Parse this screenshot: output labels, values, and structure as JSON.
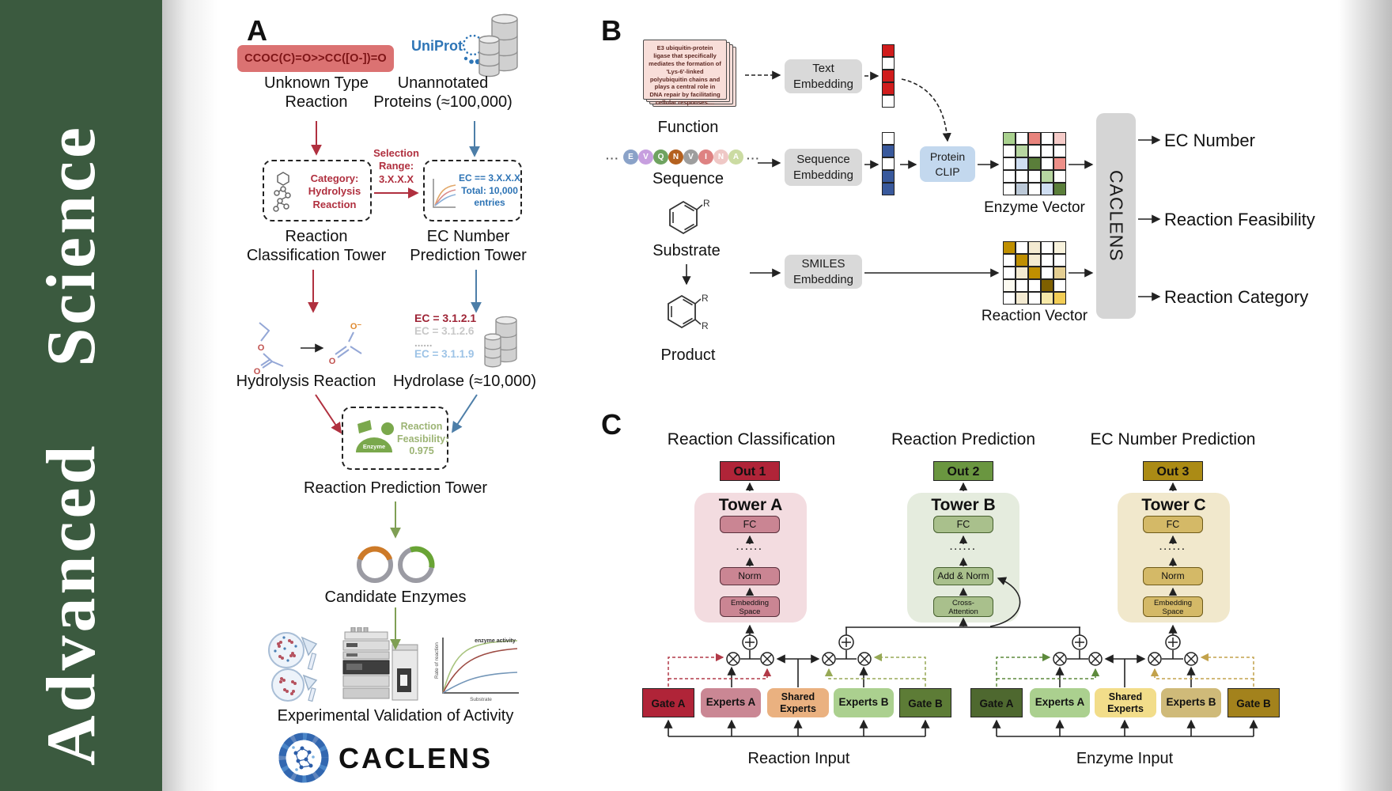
{
  "journal": {
    "name": "Advanced Science"
  },
  "panelA": {
    "label": "A",
    "smiles": "CCOC(C)=O>>CC([O-])=O",
    "unknown_reaction": "Unknown Type\nReaction",
    "uniprot": "UniProt",
    "unannotated": "Unannotated\nProteins (≈100,000)",
    "selection_range": "Selection\nRange:\n3.X.X.X",
    "category_box": "Category:\nHydrolysis\nReaction",
    "ec_box": "EC == 3.X.X.X\nTotal: 10,000\nentries",
    "classification_tower": "Reaction\nClassification Tower",
    "ec_tower": "EC Number\nPrediction Tower",
    "hydrolysis_label": "Hydrolysis Reaction",
    "ec_list": [
      "EC = 3.1.2.1",
      "EC = 3.1.2.6",
      "......",
      "EC = 3.1.1.9"
    ],
    "hydrolase_label": "Hydrolase (≈10,000)",
    "enzyme_label": "Enzyme",
    "feasibility": "Reaction\nFeasibility:\n0.975",
    "prediction_tower": "Reaction Prediction Tower",
    "candidate_label": "Candidate Enzymes",
    "validation_label": "Experimental Validation of Activity",
    "graph": {
      "ylabel": "Rate of reaction",
      "xlabel": "Substrate",
      "annotation": "enzyme activity"
    },
    "logo_text": "CACLENS"
  },
  "panelB": {
    "label": "B",
    "function_text": "E3 ubiquitin-protein ligase that specifically mediates the formation of 'Lys-6'-linked polyubiquitin chains and plays a central role in DNA repair by facilitating cellular responses....",
    "function_label": "Function",
    "ellipsis": "···",
    "residues": [
      {
        "t": "E",
        "c": "#8aa2c8"
      },
      {
        "t": "V",
        "c": "#c79fdf"
      },
      {
        "t": "Q",
        "c": "#6fa360"
      },
      {
        "t": "N",
        "c": "#b4611f"
      },
      {
        "t": "V",
        "c": "#9e9e9e"
      },
      {
        "t": "I",
        "c": "#de8282"
      },
      {
        "t": "N",
        "c": "#efc8c6"
      },
      {
        "t": "A",
        "c": "#cbdba2"
      }
    ],
    "sequence_label": "Sequence",
    "substrate_label": "Substrate",
    "product_label": "Product",
    "r_label": "R",
    "text_embedding": "Text\nEmbedding",
    "sequence_embedding": "Sequence\nEmbedding",
    "smiles_embedding": "SMILES\nEmbedding",
    "protein_clip": "Protein\nCLIP",
    "text_vector": [
      "#d01c1c",
      "#ffffff",
      "#d01c1c",
      "#d01c1c",
      "#ffffff"
    ],
    "seq_vector": [
      "#ffffff",
      "#39599c",
      "#ffffff",
      "#39599c",
      "#39599c"
    ],
    "enzyme_matrix": [
      "#a9d18e",
      "#ffffff",
      "#e8837c",
      "#ffffff",
      "#f5cbc8",
      "#ffffff",
      "#b7d6a1",
      "#ffffff",
      "#ffffff",
      "#ffffff",
      "#ffffff",
      "#cfdef2",
      "#5a7e3a",
      "#ffffff",
      "#ee8f88",
      "#ffffff",
      "#ffffff",
      "#ffffff",
      "#b7d6a1",
      "#ffffff",
      "#ffffff",
      "#bcc9d8",
      "#ffffff",
      "#cfdef2",
      "#5a7e3a"
    ],
    "reaction_matrix": [
      "#bf8f00",
      "#ffffff",
      "#f3ead1",
      "#ffffff",
      "#f8f2dc",
      "#ffffff",
      "#bf8f00",
      "#f3ead1",
      "#ffffff",
      "#ffffff",
      "#ffffff",
      "#f3ead1",
      "#bf8f00",
      "#ffffff",
      "#e5cf92",
      "#fcfaf0",
      "#ffffff",
      "#ffffff",
      "#7f6000",
      "#ffffff",
      "#ffffff",
      "#f3ead1",
      "#ffffff",
      "#f7e9a8",
      "#f2cd55"
    ],
    "enzyme_vector_label": "Enzyme Vector",
    "reaction_vector_label": "Reaction Vector",
    "caclens": "CACLENS",
    "outputs": [
      "EC Number",
      "Reaction Feasibility",
      "Reaction Category"
    ]
  },
  "panelC": {
    "label": "C",
    "dots": "······",
    "columns": [
      {
        "heading": "Reaction Classification",
        "out": "Out 1",
        "tower": "Tower A",
        "fc": "FC",
        "mid": "Norm",
        "bottom": "Embedding\nSpace"
      },
      {
        "heading": "Reaction Prediction",
        "out": "Out 2",
        "tower": "Tower B",
        "fc": "FC",
        "mid": "Add & Norm",
        "bottom": "Cross-\nAttention"
      },
      {
        "heading": "EC Number Prediction",
        "out": "Out 3",
        "tower": "Tower C",
        "fc": "FC",
        "mid": "Norm",
        "bottom": "Embedding\nSpace"
      }
    ],
    "reaction_group": {
      "gate_a": "Gate A",
      "experts_a": "Experts A",
      "shared": "Shared\nExperts",
      "experts_b": "Experts B",
      "gate_b": "Gate B",
      "label": "Reaction Input"
    },
    "enzyme_group": {
      "gate_a": "Gate A",
      "experts_a": "Experts A",
      "shared": "Shared\nExperts",
      "experts_b": "Experts B",
      "gate_b": "Gate B",
      "label": "Enzyme Input"
    }
  }
}
